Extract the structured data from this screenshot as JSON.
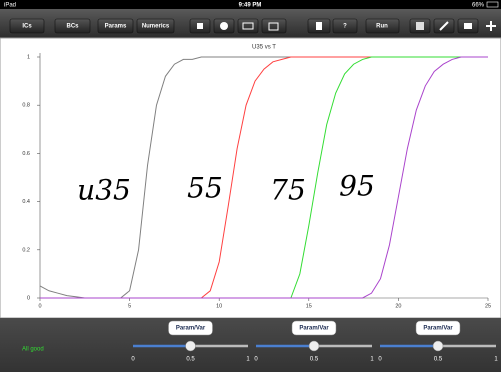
{
  "status_bar": {
    "device": "iPad",
    "time": "9:49 PM",
    "battery": "66%"
  },
  "toolbar": {
    "buttons": [
      "ICs",
      "BCs",
      "Params",
      "Numerics"
    ],
    "help": "?",
    "run": "Run"
  },
  "chart_data": {
    "type": "line",
    "title": "U35 vs T",
    "x": [
      0,
      0.5,
      1,
      1.5,
      2,
      2.5,
      3,
      3.5,
      4,
      4.5,
      5,
      5.5,
      6,
      6.5,
      7,
      7.5,
      8,
      8.5,
      9,
      9.5,
      10,
      10.5,
      11,
      11.5,
      12,
      12.5,
      13,
      13.5,
      14,
      14.5,
      15,
      15.5,
      16,
      16.5,
      17,
      17.5,
      18,
      18.5,
      19,
      19.5,
      20,
      20.5,
      21,
      21.5,
      22,
      22.5,
      23,
      23.5,
      24,
      24.5,
      25
    ],
    "series": [
      {
        "color": "#808080",
        "values": [
          0.05,
          0.03,
          0.02,
          0.01,
          0.005,
          0,
          0,
          0,
          0,
          0,
          0.03,
          0.2,
          0.55,
          0.8,
          0.92,
          0.97,
          0.99,
          0.99,
          1,
          1,
          1,
          1,
          1,
          1,
          1,
          1,
          1,
          1,
          1,
          1,
          1,
          1,
          1,
          1,
          1,
          1,
          1,
          1,
          1,
          1,
          1,
          1,
          1,
          1,
          1,
          1,
          1,
          1,
          1,
          1,
          1
        ]
      },
      {
        "color": "#ff4040",
        "values": [
          0,
          0,
          0,
          0,
          0,
          0,
          0,
          0,
          0,
          0,
          0,
          0,
          0,
          0,
          0,
          0,
          0,
          0,
          0,
          0.03,
          0.15,
          0.38,
          0.62,
          0.8,
          0.9,
          0.95,
          0.98,
          0.99,
          1,
          1,
          1,
          1,
          1,
          1,
          1,
          1,
          1,
          1,
          1,
          1,
          1,
          1,
          1,
          1,
          1,
          1,
          1,
          1,
          1,
          1,
          1
        ]
      },
      {
        "color": "#33dd33",
        "values": [
          0,
          0,
          0,
          0,
          0,
          0,
          0,
          0,
          0,
          0,
          0,
          0,
          0,
          0,
          0,
          0,
          0,
          0,
          0,
          0,
          0,
          0,
          0,
          0,
          0,
          0,
          0,
          0,
          0,
          0.1,
          0.3,
          0.52,
          0.72,
          0.85,
          0.93,
          0.97,
          0.99,
          1,
          1,
          1,
          1,
          1,
          1,
          1,
          1,
          1,
          1,
          1,
          1,
          1,
          1
        ]
      },
      {
        "color": "#aa44cc",
        "values": [
          0,
          0,
          0,
          0,
          0,
          0,
          0,
          0,
          0,
          0,
          0,
          0,
          0,
          0,
          0,
          0,
          0,
          0,
          0,
          0,
          0,
          0,
          0,
          0,
          0,
          0,
          0,
          0,
          0,
          0,
          0,
          0,
          0,
          0,
          0,
          0,
          0,
          0.02,
          0.08,
          0.22,
          0.42,
          0.62,
          0.78,
          0.88,
          0.94,
          0.97,
          0.99,
          1,
          1,
          1,
          1
        ]
      }
    ],
    "xlim": [
      0,
      25
    ],
    "xticks": [
      0,
      5,
      10,
      15,
      20,
      25
    ],
    "ylim": [
      0,
      1
    ],
    "yticks": [
      0,
      0.2,
      0.4,
      0.6,
      0.8,
      1
    ],
    "annotations": [
      "u35",
      "55",
      "75",
      "95"
    ]
  },
  "bottom": {
    "status": "All good",
    "controls": [
      {
        "button": "Param/Var",
        "min": 0,
        "mid": 0.5,
        "max": 1,
        "value": 0.5
      },
      {
        "button": "Param/Var",
        "min": 0,
        "mid": 0.5,
        "max": 1,
        "value": 0.5
      },
      {
        "button": "Param/Var",
        "min": 0,
        "mid": 0.5,
        "max": 1,
        "value": 0.5
      }
    ]
  }
}
